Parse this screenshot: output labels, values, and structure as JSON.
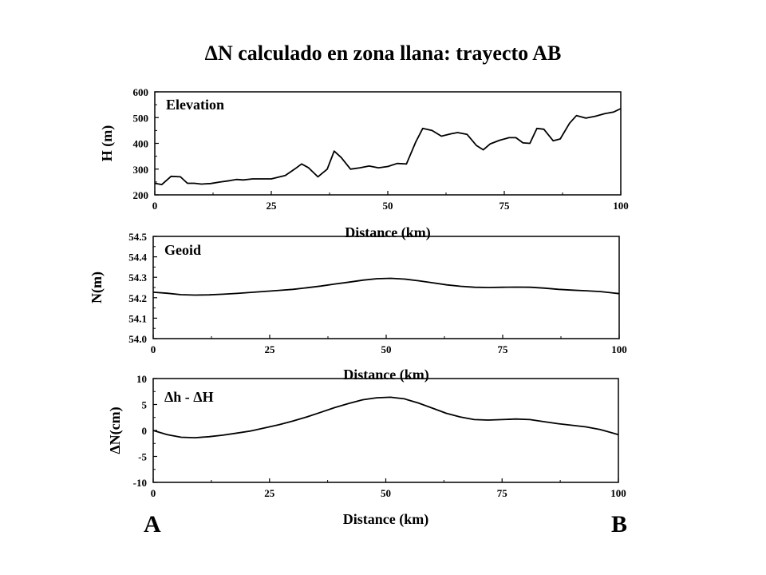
{
  "title": "ΔN calculado en zona llana: trayecto AB",
  "end_labels": {
    "start": "A",
    "end": "B"
  },
  "chart_data": [
    {
      "type": "line",
      "panel_label": "Elevation",
      "xlabel": "Distance (km)",
      "ylabel": "H (m)",
      "xlim": [
        0,
        100
      ],
      "ylim": [
        200,
        600
      ],
      "xticks": [
        0,
        25,
        50,
        75,
        100
      ],
      "yticks": [
        200,
        300,
        400,
        500,
        600
      ],
      "ytick_labels": [
        "200",
        "300",
        "400",
        "500",
        "600"
      ],
      "x": [
        0,
        1.5,
        3.5,
        5.5,
        7,
        8.5,
        10,
        12,
        14,
        16,
        17.5,
        19,
        21,
        23,
        25,
        28,
        30,
        31.5,
        33,
        35,
        37,
        38.5,
        40,
        42,
        44,
        46,
        48,
        50,
        52,
        54,
        56,
        57.5,
        59.5,
        61.5,
        63.5,
        65,
        67,
        69,
        70.5,
        72,
        74,
        76,
        77.5,
        79,
        80.5,
        82,
        83.5,
        85.5,
        87,
        89,
        90.5,
        92.5,
        94.5,
        96.5,
        98.5,
        100
      ],
      "y": [
        245,
        240,
        272,
        270,
        245,
        245,
        242,
        244,
        250,
        255,
        260,
        258,
        262,
        262,
        262,
        275,
        300,
        320,
        305,
        270,
        300,
        370,
        345,
        300,
        305,
        312,
        305,
        310,
        322,
        320,
        405,
        458,
        450,
        428,
        437,
        442,
        435,
        392,
        375,
        398,
        412,
        422,
        422,
        402,
        400,
        458,
        455,
        410,
        417,
        478,
        508,
        498,
        505,
        515,
        522,
        535
      ]
    },
    {
      "type": "line",
      "panel_label": "Geoid",
      "xlabel": "Distance (km)",
      "ylabel": "N(m)",
      "xlim": [
        0,
        100
      ],
      "ylim": [
        54.0,
        54.5
      ],
      "xticks": [
        0,
        25,
        50,
        75,
        100
      ],
      "yticks": [
        54.0,
        54.1,
        54.2,
        54.3,
        54.4,
        54.5
      ],
      "ytick_labels": [
        "54.0",
        "54.1",
        "54.2",
        "54.3",
        "54.4",
        "54.5"
      ],
      "x": [
        0,
        3,
        6,
        9,
        12,
        15,
        18,
        21,
        24,
        27,
        30,
        33,
        36,
        39,
        42,
        45,
        48,
        51,
        54,
        57,
        60,
        63,
        66,
        69,
        72,
        75,
        78,
        81,
        84,
        87,
        90,
        93,
        96,
        100
      ],
      "y": [
        54.227,
        54.222,
        54.215,
        54.213,
        54.214,
        54.217,
        54.221,
        54.226,
        54.231,
        54.236,
        54.241,
        54.249,
        54.257,
        54.267,
        54.276,
        54.286,
        54.293,
        54.295,
        54.291,
        54.283,
        54.273,
        54.263,
        54.256,
        54.251,
        54.25,
        54.251,
        54.252,
        54.251,
        54.247,
        54.241,
        54.237,
        54.234,
        54.23,
        54.22
      ]
    },
    {
      "type": "line",
      "panel_label": "Δh - ΔH",
      "xlabel": "Distance (km)",
      "ylabel": "ΔN(cm)",
      "xlim": [
        0,
        100
      ],
      "ylim": [
        -10,
        10
      ],
      "xticks": [
        0,
        25,
        50,
        75,
        100
      ],
      "yticks": [
        -10,
        -5,
        0,
        5,
        10
      ],
      "ytick_labels": [
        "-10",
        "-5",
        "0",
        "5",
        "10"
      ],
      "x": [
        0,
        3,
        6,
        9,
        12,
        15,
        18,
        21,
        24,
        27,
        30,
        33,
        36,
        39,
        42,
        45,
        48,
        51,
        54,
        57,
        60,
        63,
        66,
        69,
        72,
        75,
        78,
        81,
        84,
        87,
        90,
        93,
        96,
        100
      ],
      "y": [
        0,
        -0.8,
        -1.3,
        -1.4,
        -1.2,
        -0.9,
        -0.5,
        -0.1,
        0.5,
        1.1,
        1.8,
        2.6,
        3.5,
        4.4,
        5.2,
        5.9,
        6.3,
        6.4,
        6.1,
        5.3,
        4.3,
        3.3,
        2.6,
        2.1,
        2.0,
        2.1,
        2.2,
        2.1,
        1.7,
        1.3,
        1.0,
        0.7,
        0.2,
        -0.8
      ]
    }
  ]
}
